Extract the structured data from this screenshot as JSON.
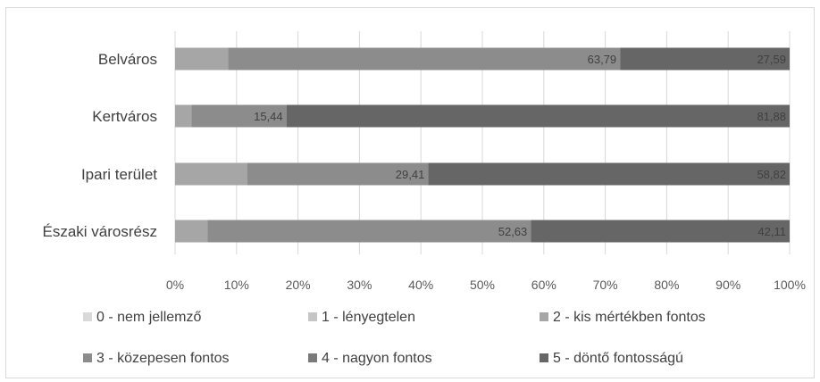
{
  "chart_data": {
    "type": "bar",
    "orientation": "horizontal",
    "stacked": "100%",
    "categories": [
      "Belváros",
      "Kertváros",
      "Ipari terület",
      "Északi városrész"
    ],
    "series": [
      {
        "name": "0 - nem jellemző",
        "values": [
          0,
          0,
          0,
          0
        ],
        "color": "#d9d9d9"
      },
      {
        "name": "1 - lényegtelen",
        "values": [
          0,
          0,
          0,
          0
        ],
        "color": "#c6c6c6"
      },
      {
        "name": "2 - kis mértékben fontos",
        "values": [
          8.62,
          2.68,
          11.77,
          5.26
        ],
        "color": "#a6a6a6"
      },
      {
        "name": "3 - közepesen fontos",
        "values": [
          63.79,
          15.44,
          29.41,
          52.63
        ],
        "color": "#8c8c8c"
      },
      {
        "name": "4 - nagyon fontos",
        "values": [
          0,
          0,
          0,
          0
        ],
        "color": "#7a7a7a"
      },
      {
        "name": "5 - döntő fontosságú",
        "values": [
          27.59,
          81.88,
          58.82,
          42.11
        ],
        "color": "#666666"
      }
    ],
    "data_labels": {
      "3 - közepesen fontos": [
        "63,79",
        "15,44",
        "29,41",
        "52,63"
      ],
      "5 - döntő fontosságú": [
        "27,59",
        "81,88",
        "58,82",
        "42,11"
      ]
    },
    "x_ticks": [
      "0%",
      "10%",
      "20%",
      "30%",
      "40%",
      "50%",
      "60%",
      "70%",
      "80%",
      "90%",
      "100%"
    ],
    "xlim": [
      0,
      100
    ],
    "grid": true,
    "legend_position": "bottom"
  }
}
